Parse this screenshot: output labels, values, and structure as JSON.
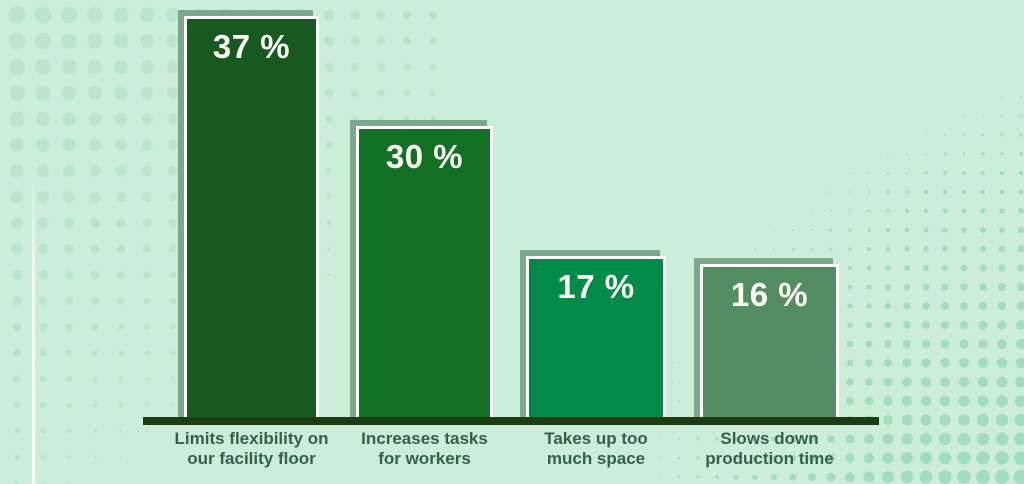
{
  "chart_data": {
    "type": "bar",
    "title": "",
    "categories": [
      "Limits flexibility on our facility floor",
      "Increases tasks for workers",
      "Takes up too much space",
      "Slows down production time"
    ],
    "values": [
      37,
      30,
      17,
      16
    ],
    "ylim": [
      0,
      40
    ],
    "grid": false,
    "legend_position": "none",
    "bars": [
      {
        "value": 37,
        "value_label": "37 %",
        "label_line1": "Limits flexibility on",
        "label_line2": "our facility floor",
        "fill": "#17591f"
      },
      {
        "value": 30,
        "value_label": "30 %",
        "label_line1": "Increases tasks",
        "label_line2": "for workers",
        "fill": "#127023"
      },
      {
        "value": 17,
        "value_label": "17 %",
        "label_line1": "Takes up too",
        "label_line2": "much space",
        "fill": "#018a48"
      },
      {
        "value": 16,
        "value_label": "16 %",
        "label_line1": "Slows down",
        "label_line2": "production time",
        "fill": "#548d61"
      }
    ]
  },
  "colors": {
    "background": "#cbedd9",
    "dots_left": "#b7e4c9",
    "dots_right": "#9bdcba",
    "bar_shadow": "#7aa98a",
    "bar_border": "#ffffff",
    "baseline": "#1e3c14",
    "value_text": "#fcfdf6",
    "category_text": "#356049"
  }
}
